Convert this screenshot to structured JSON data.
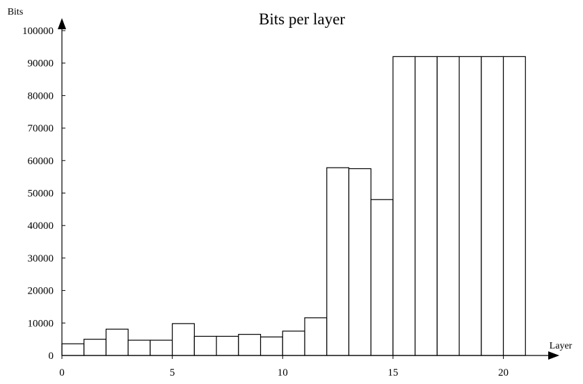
{
  "chart_data": {
    "type": "bar",
    "title": "Bits per layer",
    "xlabel": "Layer",
    "ylabel": "Bits",
    "x": [
      0,
      1,
      2,
      3,
      4,
      5,
      6,
      7,
      8,
      9,
      10,
      11,
      12,
      13,
      14,
      15,
      16,
      17,
      18,
      19,
      20
    ],
    "values": [
      3600,
      5000,
      8100,
      4700,
      4700,
      9800,
      5900,
      5900,
      6500,
      5700,
      7500,
      11600,
      57800,
      57500,
      48000,
      92000,
      92000,
      92000,
      92000,
      92000,
      92000
    ],
    "xlim": [
      0,
      22
    ],
    "ylim": [
      0,
      100000
    ],
    "xticks": [
      "0",
      "5",
      "10",
      "15",
      "20"
    ],
    "xtick_values": [
      0,
      5,
      10,
      15,
      20
    ],
    "yticks": [
      "0",
      "10000",
      "20000",
      "30000",
      "40000",
      "50000",
      "60000",
      "70000",
      "80000",
      "90000",
      "100000"
    ],
    "ytick_values": [
      0,
      10000,
      20000,
      30000,
      40000,
      50000,
      60000,
      70000,
      80000,
      90000,
      100000
    ],
    "grid": false,
    "bar_fill": "#ffffff",
    "bar_stroke": "#000000"
  }
}
